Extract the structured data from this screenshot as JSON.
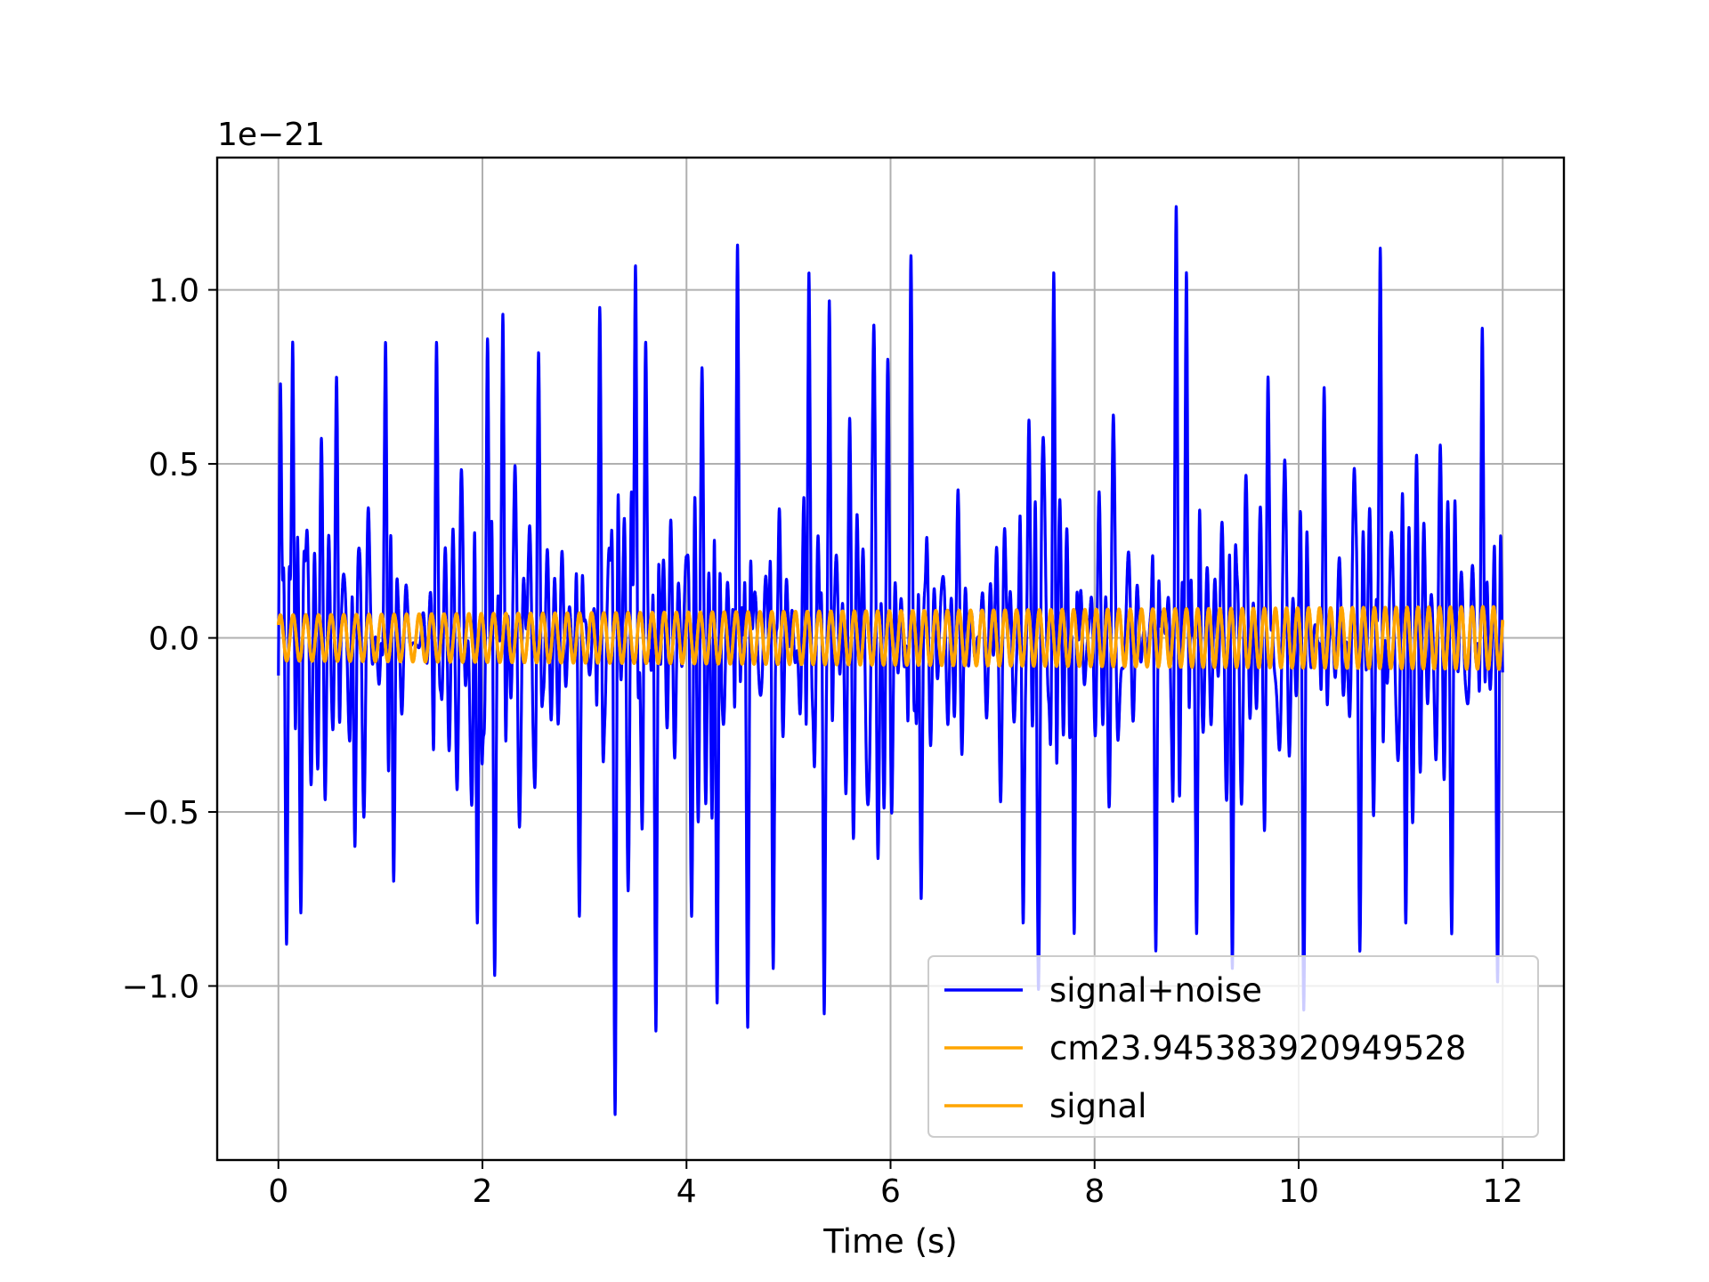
{
  "chart_data": {
    "type": "line",
    "title": "",
    "xlabel": "Time (s)",
    "ylabel": "",
    "y_offset_label": "1e−21",
    "y_scale": 1e-21,
    "xlim": [
      -0.6,
      12.6
    ],
    "ylim": [
      -1.5e-21,
      1.38e-21
    ],
    "x_ticks": [
      0,
      2,
      4,
      6,
      8,
      10,
      12
    ],
    "x_tick_labels": [
      "0",
      "2",
      "4",
      "6",
      "8",
      "10",
      "12"
    ],
    "y_ticks": [
      -1e-21,
      -5e-22,
      0,
      5e-22,
      1e-21
    ],
    "y_tick_labels": [
      "−1.0",
      "−0.5",
      "0.0",
      "0.5",
      "1.0"
    ],
    "grid": true,
    "legend_position": "lower-right",
    "series": [
      {
        "name": "signal+noise",
        "color": "#0000ff",
        "t_range": [
          0,
          12
        ],
        "amplitude_peaks": [
          [
            0.02,
            7.3e-22
          ],
          [
            0.08,
            -8.8e-22
          ],
          [
            0.14,
            8.5e-22
          ],
          [
            0.22,
            -7.9e-22
          ],
          [
            0.57,
            7.5e-22
          ],
          [
            0.75,
            -6e-22
          ],
          [
            1.05,
            8.5e-22
          ],
          [
            1.13,
            -7e-22
          ],
          [
            1.55,
            8.5e-22
          ],
          [
            1.95,
            -8.2e-22
          ],
          [
            2.05,
            8.6e-22
          ],
          [
            2.12,
            -9.7e-22
          ],
          [
            2.2,
            9.3e-22
          ],
          [
            2.55,
            8.2e-22
          ],
          [
            2.95,
            -8e-22
          ],
          [
            3.15,
            9.5e-22
          ],
          [
            3.3,
            -1.37e-21
          ],
          [
            3.5,
            1.07e-21
          ],
          [
            3.6,
            8.5e-22
          ],
          [
            3.7,
            -1.13e-21
          ],
          [
            4.05,
            -8e-22
          ],
          [
            4.3,
            -1.05e-21
          ],
          [
            4.5,
            1.13e-21
          ],
          [
            4.6,
            -1.12e-21
          ],
          [
            4.85,
            -9.5e-22
          ],
          [
            5.2,
            1.05e-21
          ],
          [
            5.35,
            -1.08e-21
          ],
          [
            5.4,
            9.7e-22
          ],
          [
            6.2,
            1.1e-21
          ],
          [
            6.3,
            -7.5e-22
          ],
          [
            7.3,
            -8.2e-22
          ],
          [
            7.45,
            -1.01e-21
          ],
          [
            7.6,
            1.05e-21
          ],
          [
            7.8,
            -8.5e-22
          ],
          [
            8.6,
            -9e-22
          ],
          [
            8.8,
            1.24e-21
          ],
          [
            8.9,
            1.05e-21
          ],
          [
            9.0,
            -8.5e-22
          ],
          [
            9.35,
            -9.5e-22
          ],
          [
            9.7,
            7.5e-22
          ],
          [
            10.05,
            -1.07e-21
          ],
          [
            10.25,
            7.2e-22
          ],
          [
            10.6,
            -9e-22
          ],
          [
            10.8,
            1.12e-21
          ],
          [
            11.05,
            -8.2e-22
          ],
          [
            11.5,
            -8.5e-22
          ],
          [
            11.8,
            8.9e-22
          ],
          [
            11.95,
            -9.9e-22
          ]
        ]
      },
      {
        "name": "cm23.945383920949528",
        "color": "#ffa500",
        "t_range": [
          0,
          12
        ],
        "amplitude_start": 6.6e-23,
        "amplitude_end": 9e-23,
        "freq_start_hz": 8.0,
        "freq_end_hz": 9.5
      },
      {
        "name": "signal",
        "color": "#ffa500",
        "t_range": [
          0,
          12
        ],
        "amplitude_start": 6.6e-23,
        "amplitude_end": 9e-23,
        "freq_start_hz": 8.0,
        "freq_end_hz": 9.5
      }
    ]
  }
}
